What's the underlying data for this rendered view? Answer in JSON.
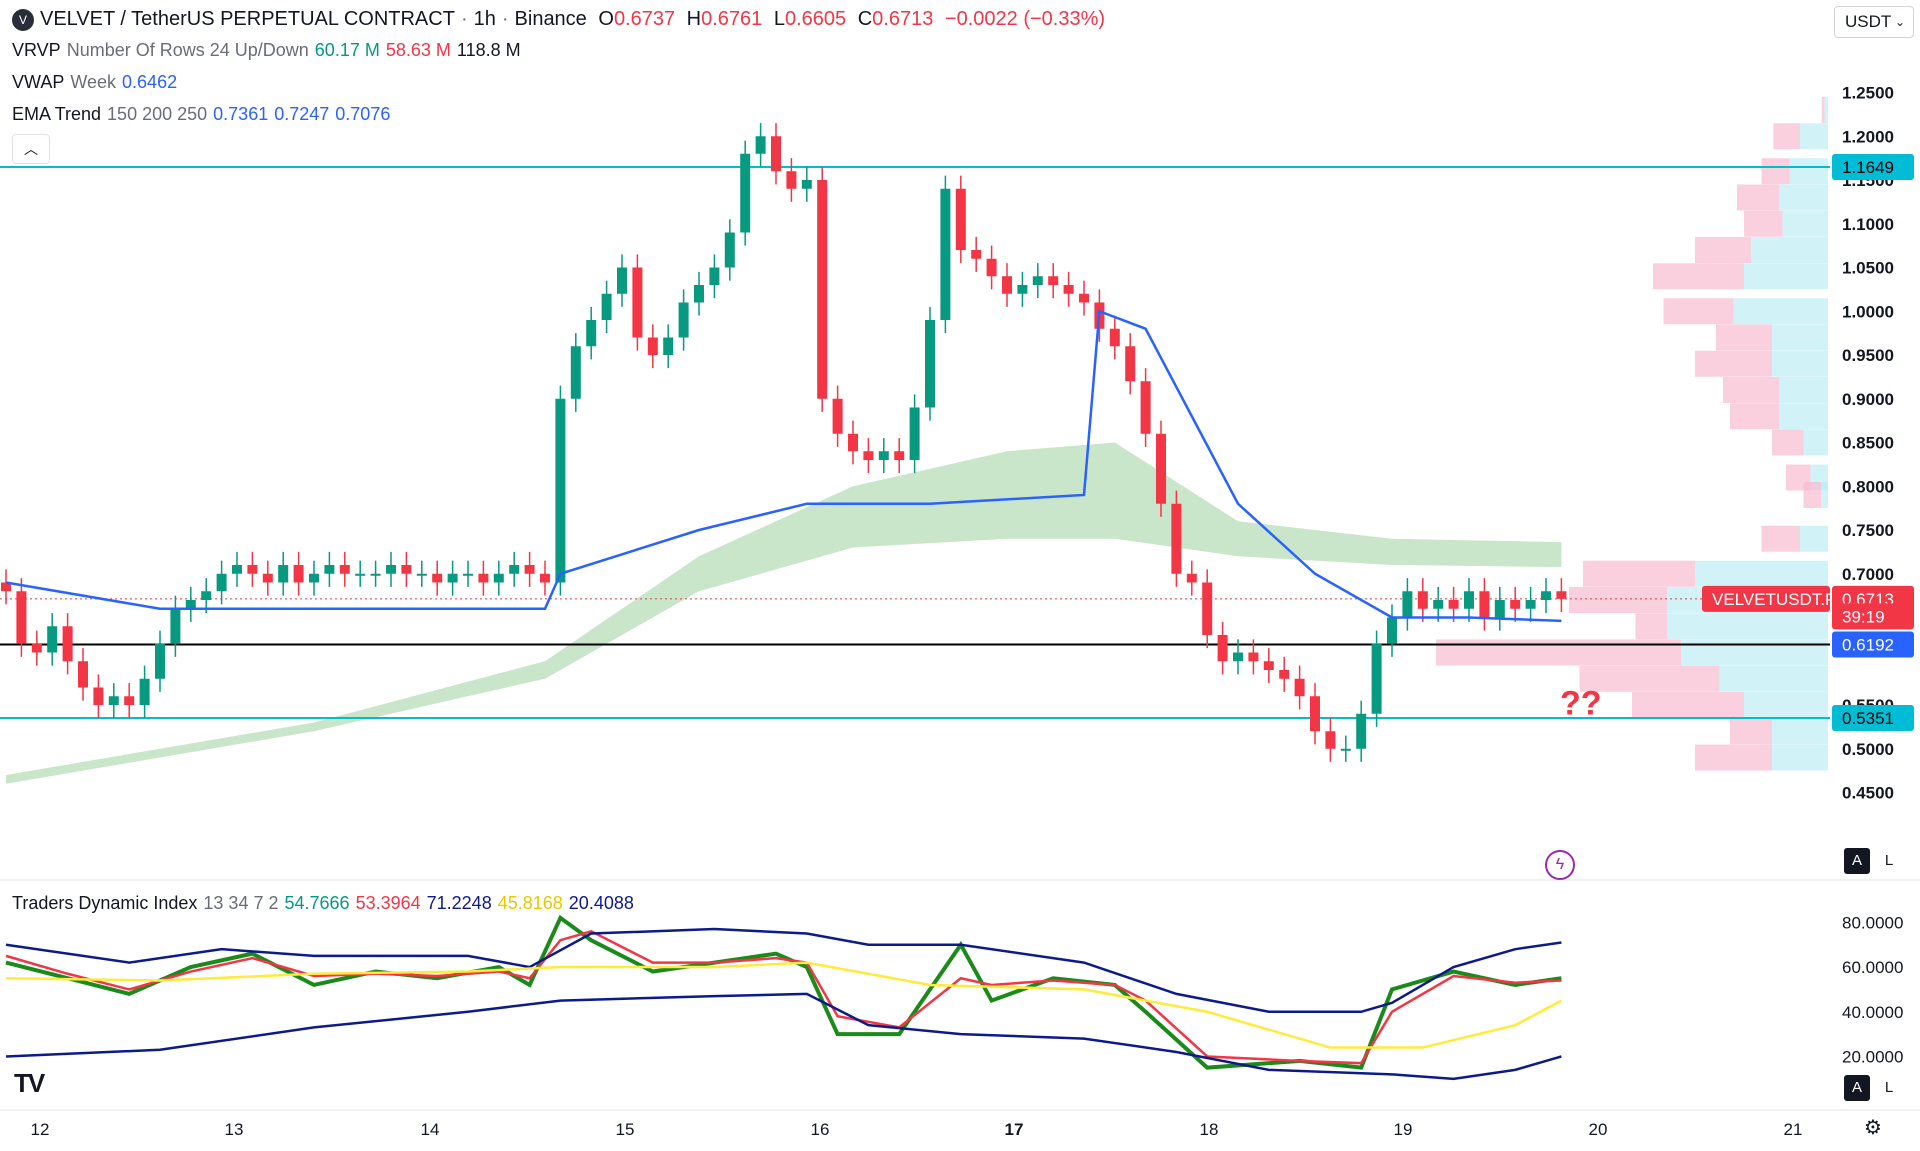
{
  "header": {
    "symbol": "VELVET / TetherUS PERPETUAL CONTRACT",
    "interval": "1h",
    "exchange": "Binance",
    "ohlc": {
      "o_label": "O",
      "o": "0.6737",
      "h_label": "H",
      "h": "0.6761",
      "l_label": "L",
      "l": "0.6605",
      "c_label": "C",
      "c": "0.6713",
      "change": "−0.0022 (−0.33%)"
    },
    "currency": "USDT"
  },
  "indicators": {
    "vrvp": {
      "name": "VRVP",
      "params": "Number Of Rows 24 Up/Down",
      "up": "60.17 M",
      "down": "58.63 M",
      "total": "118.8 M"
    },
    "vwap": {
      "name": "VWAP",
      "params": "Week",
      "value": "0.6462"
    },
    "ema": {
      "name": "EMA Trend",
      "params": "150 200 250",
      "v1": "0.7361",
      "v2": "0.7247",
      "v3": "0.7076"
    },
    "tdi": {
      "name": "Traders Dynamic Index",
      "params": "13 34 7 2",
      "v1": "54.7666",
      "v2": "53.3964",
      "v3": "71.2248",
      "v4": "45.8168",
      "v5": "20.4088"
    }
  },
  "annotation": "??",
  "price_badges": {
    "resistance": "1.1649",
    "symbol_tag": "VELVETUSDT.P",
    "last": "0.6713",
    "countdown": "39:19",
    "mid": "0.6192",
    "support": "0.5351"
  },
  "colors": {
    "up": "#089981",
    "down": "#f23645",
    "cyan_line": "#00bcd4",
    "vwap_line": "#2962ff",
    "ema_cloud": "#a5d6a7",
    "tdi_green": "#1b8a1b",
    "tdi_red": "#f23645",
    "tdi_yellow": "#ffeb3b",
    "tdi_band": "#0d1a8c"
  },
  "chart_data": [
    {
      "type": "candlestick",
      "title": "VELVET / TetherUS PERPETUAL CONTRACT · 1h · Binance",
      "x_tick_labels": [
        "12",
        "13",
        "14",
        "15",
        "16",
        "17",
        "18",
        "19",
        "20",
        "21"
      ],
      "y_tick_labels": [
        "1.2500",
        "1.2000",
        "1.1500",
        "1.1000",
        "1.0500",
        "1.0000",
        "0.9500",
        "0.9000",
        "0.8500",
        "0.8000",
        "0.7500",
        "0.7000",
        "0.5500",
        "0.5000",
        "0.4500"
      ],
      "ylim": [
        0.43,
        1.27
      ],
      "horizontal_levels": [
        {
          "value": 1.1649,
          "color": "#00bcd4"
        },
        {
          "value": 0.6192,
          "color": "#000000"
        },
        {
          "value": 0.5351,
          "color": "#00bcd4"
        }
      ],
      "close_path": [
        [
          0,
          0.68
        ],
        [
          1,
          0.62
        ],
        [
          2,
          0.61
        ],
        [
          3,
          0.64
        ],
        [
          4,
          0.6
        ],
        [
          5,
          0.57
        ],
        [
          6,
          0.55
        ],
        [
          7,
          0.56
        ],
        [
          8,
          0.55
        ],
        [
          9,
          0.58
        ],
        [
          10,
          0.62
        ],
        [
          11,
          0.66
        ],
        [
          12,
          0.67
        ],
        [
          13,
          0.68
        ],
        [
          14,
          0.7
        ],
        [
          15,
          0.71
        ],
        [
          16,
          0.7
        ],
        [
          17,
          0.69
        ],
        [
          18,
          0.71
        ],
        [
          19,
          0.69
        ],
        [
          20,
          0.7
        ],
        [
          21,
          0.71
        ],
        [
          22,
          0.7
        ],
        [
          23,
          0.7
        ],
        [
          24,
          0.7
        ],
        [
          25,
          0.71
        ],
        [
          26,
          0.7
        ],
        [
          27,
          0.7
        ],
        [
          28,
          0.69
        ],
        [
          29,
          0.7
        ],
        [
          30,
          0.7
        ],
        [
          31,
          0.69
        ],
        [
          32,
          0.7
        ],
        [
          33,
          0.71
        ],
        [
          34,
          0.7
        ],
        [
          35,
          0.69
        ],
        [
          36,
          0.9
        ],
        [
          37,
          0.96
        ],
        [
          38,
          0.99
        ],
        [
          39,
          1.02
        ],
        [
          40,
          1.05
        ],
        [
          41,
          0.97
        ],
        [
          42,
          0.95
        ],
        [
          43,
          0.97
        ],
        [
          44,
          1.01
        ],
        [
          45,
          1.03
        ],
        [
          46,
          1.05
        ],
        [
          47,
          1.09
        ],
        [
          48,
          1.18
        ],
        [
          49,
          1.2
        ],
        [
          50,
          1.16
        ],
        [
          51,
          1.14
        ],
        [
          52,
          1.15
        ],
        [
          53,
          0.9
        ],
        [
          54,
          0.86
        ],
        [
          55,
          0.84
        ],
        [
          56,
          0.83
        ],
        [
          57,
          0.84
        ],
        [
          58,
          0.83
        ],
        [
          59,
          0.89
        ],
        [
          60,
          0.99
        ],
        [
          61,
          1.14
        ],
        [
          62,
          1.07
        ],
        [
          63,
          1.06
        ],
        [
          64,
          1.04
        ],
        [
          65,
          1.02
        ],
        [
          66,
          1.03
        ],
        [
          67,
          1.04
        ],
        [
          68,
          1.03
        ],
        [
          69,
          1.02
        ],
        [
          70,
          1.01
        ],
        [
          71,
          0.98
        ],
        [
          72,
          0.96
        ],
        [
          73,
          0.92
        ],
        [
          74,
          0.86
        ],
        [
          75,
          0.78
        ],
        [
          76,
          0.7
        ],
        [
          77,
          0.69
        ],
        [
          78,
          0.63
        ],
        [
          79,
          0.6
        ],
        [
          80,
          0.61
        ],
        [
          81,
          0.6
        ],
        [
          82,
          0.59
        ],
        [
          83,
          0.58
        ],
        [
          84,
          0.56
        ],
        [
          85,
          0.52
        ],
        [
          86,
          0.5
        ],
        [
          87,
          0.5
        ],
        [
          88,
          0.54
        ],
        [
          89,
          0.62
        ],
        [
          90,
          0.65
        ],
        [
          91,
          0.68
        ],
        [
          92,
          0.66
        ],
        [
          93,
          0.67
        ],
        [
          94,
          0.66
        ],
        [
          95,
          0.68
        ],
        [
          96,
          0.65
        ],
        [
          97,
          0.67
        ],
        [
          98,
          0.66
        ],
        [
          99,
          0.67
        ],
        [
          100,
          0.68
        ],
        [
          101,
          0.6713
        ]
      ],
      "vwap_path": [
        [
          0,
          0.69
        ],
        [
          10,
          0.66
        ],
        [
          35,
          0.66
        ],
        [
          36,
          0.7
        ],
        [
          45,
          0.75
        ],
        [
          52,
          0.78
        ],
        [
          60,
          0.78
        ],
        [
          70,
          0.79
        ],
        [
          71,
          1.0
        ],
        [
          74,
          0.98
        ],
        [
          77,
          0.88
        ],
        [
          80,
          0.78
        ],
        [
          85,
          0.7
        ],
        [
          90,
          0.65
        ],
        [
          95,
          0.65
        ],
        [
          101,
          0.6462
        ]
      ],
      "ema_cloud_upper": [
        [
          0,
          0.47
        ],
        [
          20,
          0.53
        ],
        [
          35,
          0.6
        ],
        [
          45,
          0.72
        ],
        [
          55,
          0.8
        ],
        [
          65,
          0.84
        ],
        [
          72,
          0.85
        ],
        [
          80,
          0.76
        ],
        [
          90,
          0.74
        ],
        [
          101,
          0.7361
        ]
      ],
      "ema_cloud_lower": [
        [
          0,
          0.46
        ],
        [
          20,
          0.52
        ],
        [
          35,
          0.58
        ],
        [
          45,
          0.68
        ],
        [
          55,
          0.73
        ],
        [
          65,
          0.74
        ],
        [
          72,
          0.74
        ],
        [
          80,
          0.72
        ],
        [
          90,
          0.71
        ],
        [
          101,
          0.7076
        ]
      ],
      "volume_profile": [
        {
          "price": 1.23,
          "up": 5,
          "down": 4
        },
        {
          "price": 1.2,
          "up": 40,
          "down": 38
        },
        {
          "price": 1.16,
          "up": 55,
          "down": 40
        },
        {
          "price": 1.13,
          "up": 70,
          "down": 60
        },
        {
          "price": 1.1,
          "up": 65,
          "down": 55
        },
        {
          "price": 1.07,
          "up": 110,
          "down": 80
        },
        {
          "price": 1.04,
          "up": 120,
          "down": 130
        },
        {
          "price": 1.0,
          "up": 135,
          "down": 100
        },
        {
          "price": 0.97,
          "up": 80,
          "down": 80
        },
        {
          "price": 0.94,
          "up": 80,
          "down": 110
        },
        {
          "price": 0.91,
          "up": 70,
          "down": 80
        },
        {
          "price": 0.88,
          "up": 70,
          "down": 70
        },
        {
          "price": 0.85,
          "up": 35,
          "down": 45
        },
        {
          "price": 0.81,
          "up": 25,
          "down": 35
        },
        {
          "price": 0.79,
          "up": 10,
          "down": 25
        },
        {
          "price": 0.74,
          "up": 40,
          "down": 55
        },
        {
          "price": 0.7,
          "up": 190,
          "down": 160
        },
        {
          "price": 0.67,
          "up": 230,
          "down": 140
        },
        {
          "price": 0.64,
          "up": 230,
          "down": 45
        },
        {
          "price": 0.61,
          "up": 210,
          "down": 350
        },
        {
          "price": 0.58,
          "up": 155,
          "down": 200
        },
        {
          "price": 0.55,
          "up": 120,
          "down": 160
        },
        {
          "price": 0.52,
          "up": 80,
          "down": 60
        },
        {
          "price": 0.49,
          "up": 80,
          "down": 110
        }
      ]
    },
    {
      "type": "line",
      "title": "Traders Dynamic Index 13 34 7 2",
      "y_tick_labels": [
        "80.0000",
        "60.0000",
        "40.0000",
        "20.0000"
      ],
      "ylim": [
        5,
        90
      ],
      "series": [
        {
          "name": "rsi_price",
          "color": "#1b8a1b",
          "points": [
            [
              0,
              62
            ],
            [
              4,
              55
            ],
            [
              8,
              48
            ],
            [
              12,
              60
            ],
            [
              16,
              66
            ],
            [
              20,
              52
            ],
            [
              24,
              58
            ],
            [
              28,
              55
            ],
            [
              32,
              60
            ],
            [
              34,
              52
            ],
            [
              36,
              82
            ],
            [
              38,
              72
            ],
            [
              42,
              58
            ],
            [
              46,
              62
            ],
            [
              50,
              66
            ],
            [
              52,
              60
            ],
            [
              54,
              30
            ],
            [
              58,
              30
            ],
            [
              62,
              70
            ],
            [
              64,
              45
            ],
            [
              68,
              55
            ],
            [
              72,
              52
            ],
            [
              74,
              40
            ],
            [
              78,
              15
            ],
            [
              84,
              18
            ],
            [
              88,
              15
            ],
            [
              90,
              50
            ],
            [
              94,
              58
            ],
            [
              98,
              52
            ],
            [
              101,
              55
            ]
          ]
        },
        {
          "name": "signal",
          "color": "#f23645",
          "points": [
            [
              0,
              65
            ],
            [
              4,
              57
            ],
            [
              8,
              50
            ],
            [
              12,
              58
            ],
            [
              16,
              64
            ],
            [
              20,
              56
            ],
            [
              24,
              57
            ],
            [
              28,
              56
            ],
            [
              32,
              58
            ],
            [
              34,
              55
            ],
            [
              36,
              72
            ],
            [
              38,
              76
            ],
            [
              42,
              62
            ],
            [
              46,
              62
            ],
            [
              50,
              64
            ],
            [
              52,
              62
            ],
            [
              54,
              38
            ],
            [
              58,
              33
            ],
            [
              62,
              55
            ],
            [
              64,
              52
            ],
            [
              68,
              54
            ],
            [
              72,
              52
            ],
            [
              74,
              45
            ],
            [
              78,
              20
            ],
            [
              84,
              18
            ],
            [
              88,
              17
            ],
            [
              90,
              40
            ],
            [
              94,
              56
            ],
            [
              98,
              53
            ],
            [
              101,
              54
            ]
          ]
        },
        {
          "name": "upper_band",
          "color": "#0d1a8c",
          "points": [
            [
              0,
              70
            ],
            [
              8,
              62
            ],
            [
              14,
              68
            ],
            [
              20,
              65
            ],
            [
              30,
              65
            ],
            [
              34,
              60
            ],
            [
              38,
              75
            ],
            [
              46,
              77
            ],
            [
              52,
              75
            ],
            [
              56,
              70
            ],
            [
              62,
              70
            ],
            [
              70,
              62
            ],
            [
              76,
              48
            ],
            [
              82,
              40
            ],
            [
              88,
              40
            ],
            [
              90,
              44
            ],
            [
              94,
              60
            ],
            [
              98,
              68
            ],
            [
              101,
              71
            ]
          ]
        },
        {
          "name": "mid_band",
          "color": "#ffeb3b",
          "points": [
            [
              0,
              55
            ],
            [
              10,
              54
            ],
            [
              20,
              57
            ],
            [
              30,
              58
            ],
            [
              36,
              60
            ],
            [
              46,
              60
            ],
            [
              52,
              62
            ],
            [
              60,
              52
            ],
            [
              70,
              50
            ],
            [
              78,
              40
            ],
            [
              86,
              24
            ],
            [
              92,
              24
            ],
            [
              98,
              34
            ],
            [
              101,
              45
            ]
          ]
        },
        {
          "name": "lower_band",
          "color": "#0d1a8c",
          "points": [
            [
              0,
              20
            ],
            [
              10,
              23
            ],
            [
              20,
              33
            ],
            [
              30,
              40
            ],
            [
              36,
              45
            ],
            [
              46,
              47
            ],
            [
              52,
              48
            ],
            [
              56,
              34
            ],
            [
              62,
              30
            ],
            [
              70,
              28
            ],
            [
              76,
              22
            ],
            [
              82,
              14
            ],
            [
              90,
              12
            ],
            [
              94,
              10
            ],
            [
              98,
              14
            ],
            [
              101,
              20
            ]
          ]
        }
      ]
    }
  ]
}
